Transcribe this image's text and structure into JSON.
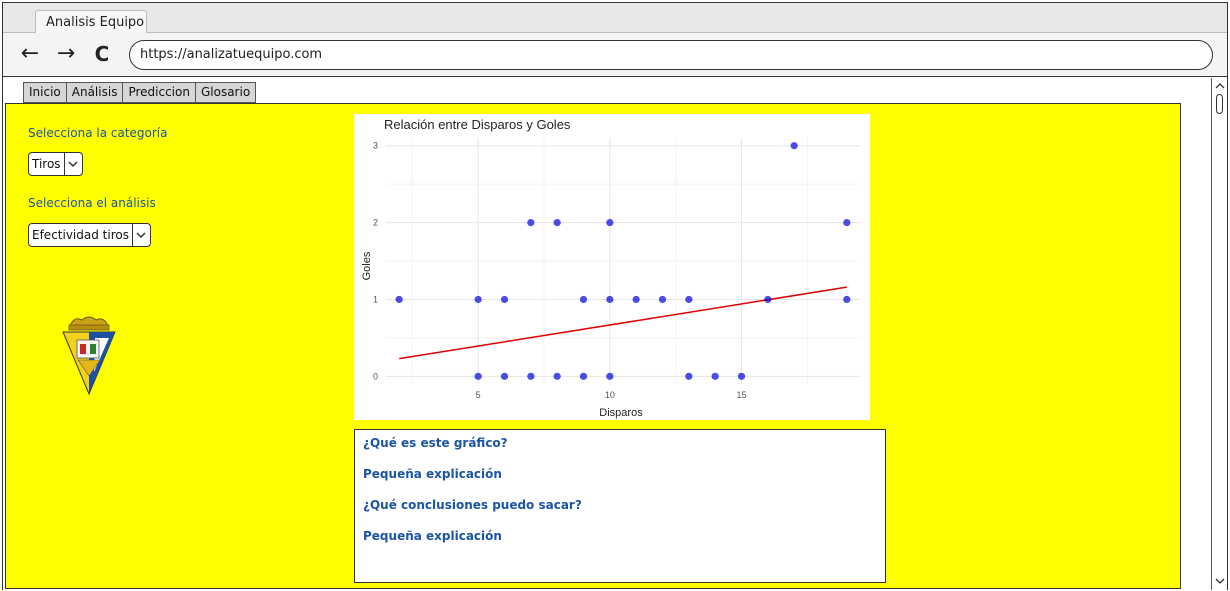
{
  "browser": {
    "tab_title": "Analisis Equipo",
    "url": "https://analizatuequipo.com",
    "back_icon": "←",
    "forward_icon": "→",
    "reload_icon": "C"
  },
  "nav": {
    "tabs": [
      "Inicio",
      "Análisis",
      "Prediccion",
      "Glosario"
    ]
  },
  "sidebar": {
    "category_label": "Selecciona la categoría",
    "category_value": "Tiros",
    "analysis_label": "Selecciona el análisis",
    "analysis_value": "Efectividad tiros"
  },
  "colors": {
    "panel_bg": "#ffff00",
    "label_blue": "#1b55a3",
    "points": "#0000dd",
    "trend": "#e00000"
  },
  "chart_data": {
    "type": "scatter",
    "title": "Relación entre Disparos y Goles",
    "xlabel": "Disparos",
    "ylabel": "Goles",
    "xlim": [
      1.5,
      19.5
    ],
    "ylim": [
      -0.1,
      3.1
    ],
    "x_ticks": [
      5,
      10,
      15
    ],
    "y_ticks": [
      0,
      1,
      2,
      3
    ],
    "grid": true,
    "points": [
      {
        "x": 2,
        "y": 1
      },
      {
        "x": 5,
        "y": 1
      },
      {
        "x": 6,
        "y": 1
      },
      {
        "x": 9,
        "y": 1
      },
      {
        "x": 10,
        "y": 1
      },
      {
        "x": 11,
        "y": 1
      },
      {
        "x": 12,
        "y": 1
      },
      {
        "x": 13,
        "y": 1
      },
      {
        "x": 16,
        "y": 1
      },
      {
        "x": 19,
        "y": 1
      },
      {
        "x": 5,
        "y": 0
      },
      {
        "x": 6,
        "y": 0
      },
      {
        "x": 7,
        "y": 0
      },
      {
        "x": 8,
        "y": 0
      },
      {
        "x": 9,
        "y": 0
      },
      {
        "x": 10,
        "y": 0
      },
      {
        "x": 13,
        "y": 0
      },
      {
        "x": 14,
        "y": 0
      },
      {
        "x": 15,
        "y": 0
      },
      {
        "x": 7,
        "y": 2
      },
      {
        "x": 8,
        "y": 2
      },
      {
        "x": 10,
        "y": 2
      },
      {
        "x": 19,
        "y": 2
      },
      {
        "x": 17,
        "y": 3
      }
    ],
    "trendline": {
      "x": [
        2,
        19
      ],
      "y": [
        0.23,
        1.16
      ]
    }
  },
  "info": {
    "q1": "¿Qué es este gráfico?",
    "a1": "Pequeña explicación",
    "q2": "¿Qué conclusiones puedo sacar?",
    "a2": "Pequeña explicación"
  }
}
